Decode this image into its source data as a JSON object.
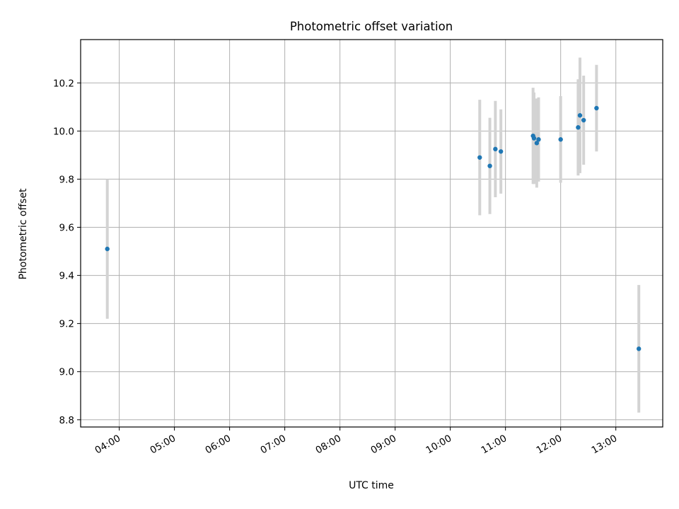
{
  "chart_data": {
    "type": "scatter",
    "title": "Photometric offset variation",
    "xlabel": "UTC time",
    "ylabel": "Photometric offset",
    "x_tick_labels": [
      "04:00",
      "05:00",
      "06:00",
      "07:00",
      "08:00",
      "09:00",
      "10:00",
      "11:00",
      "12:00",
      "13:00"
    ],
    "y_tick_labels": [
      "8.8",
      "9.0",
      "9.2",
      "9.4",
      "9.6",
      "9.8",
      "10.0",
      "10.2"
    ],
    "xlim": [
      "03:18",
      "13:51"
    ],
    "ylim": [
      8.77,
      10.38
    ],
    "grid": true,
    "marker_color": "#1f77b4",
    "errorbar_color": "#d3d3d3",
    "points": [
      {
        "time": "03:47",
        "y": 9.51,
        "yerr": 0.29
      },
      {
        "time": "10:32",
        "y": 9.89,
        "yerr": 0.24
      },
      {
        "time": "10:43",
        "y": 9.855,
        "yerr": 0.2
      },
      {
        "time": "10:49",
        "y": 9.925,
        "yerr": 0.2
      },
      {
        "time": "10:55",
        "y": 9.915,
        "yerr": 0.175
      },
      {
        "time": "11:30",
        "y": 9.98,
        "yerr": 0.2
      },
      {
        "time": "11:31",
        "y": 9.97,
        "yerr": 0.19
      },
      {
        "time": "11:34",
        "y": 9.95,
        "yerr": 0.185
      },
      {
        "time": "11:36",
        "y": 9.965,
        "yerr": 0.175
      },
      {
        "time": "12:00",
        "y": 9.965,
        "yerr": 0.18
      },
      {
        "time": "12:19",
        "y": 10.015,
        "yerr": 0.2
      },
      {
        "time": "12:21",
        "y": 10.065,
        "yerr": 0.24
      },
      {
        "time": "12:25",
        "y": 10.045,
        "yerr": 0.185
      },
      {
        "time": "12:39",
        "y": 10.095,
        "yerr": 0.18
      },
      {
        "time": "13:25",
        "y": 9.095,
        "yerr": 0.265
      }
    ]
  }
}
